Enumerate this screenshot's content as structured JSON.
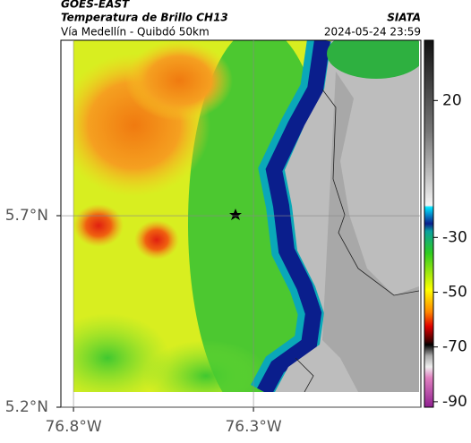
{
  "header": {
    "title": "GOES-EAST",
    "subtitle": "Temperatura de Brillo CH13",
    "route": "Vía Medellín - Quibdó 50km",
    "source": "SIATA",
    "timestamp": "2024-05-24 23:59"
  },
  "map": {
    "xlim": [
      -76.835,
      -75.835
    ],
    "ylim": [
      5.2,
      6.158
    ],
    "xticks": [
      {
        "value": -76.8,
        "label": "76.8°W"
      },
      {
        "value": -76.3,
        "label": "76.3°W"
      }
    ],
    "yticks": [
      {
        "value": 5.7,
        "label": "5.7°N"
      },
      {
        "value": 5.2,
        "label": "5.2°N"
      }
    ],
    "grid": true
  },
  "colorbar": {
    "lim": [
      -92,
      42
    ],
    "ticks": [
      20,
      -30,
      -50,
      -70,
      -90
    ]
  }
}
